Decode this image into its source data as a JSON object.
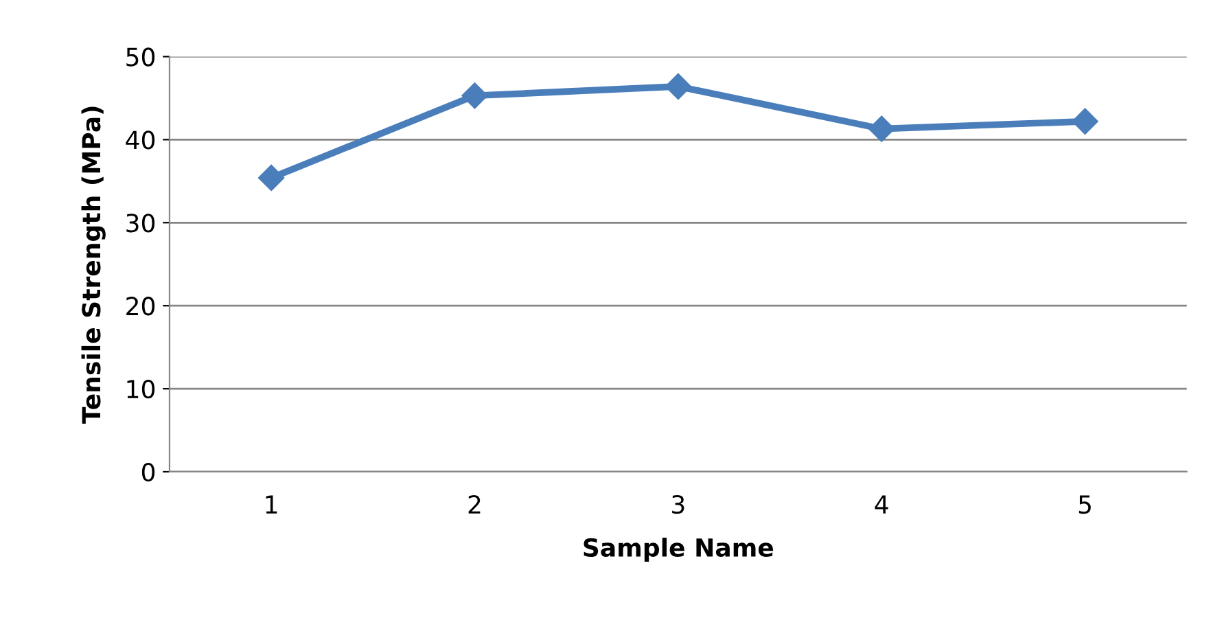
{
  "chart_data": {
    "type": "line",
    "xlabel": "Sample Name",
    "ylabel": "Tensile Strength (MPa)",
    "categories": [
      "1",
      "2",
      "3",
      "4",
      "5"
    ],
    "series": [
      {
        "color": "#4a7ebb",
        "values": [
          35.4,
          45.3,
          46.4,
          41.3,
          42.2
        ]
      }
    ],
    "ylim": [
      0,
      50
    ],
    "yticks": [
      0,
      10,
      20,
      30,
      40,
      50
    ],
    "grid": "y",
    "marker": "diamond",
    "line_style": "solid",
    "legend": false
  }
}
